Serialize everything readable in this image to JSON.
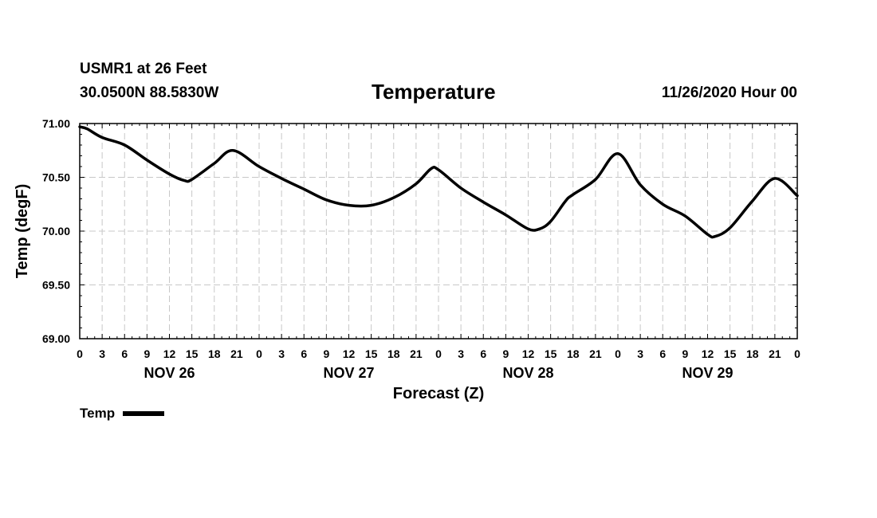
{
  "header": {
    "station": "USMR1 at 26 Feet",
    "coords": "30.0500N 88.5830W",
    "title": "Temperature",
    "datetime": "11/26/2020 Hour 00"
  },
  "legend": {
    "label": "Temp",
    "color": "#000000"
  },
  "chart_data": {
    "type": "line",
    "title": "Temperature",
    "xlabel": "Forecast (Z)",
    "ylabel": "Temp (degF)",
    "ylim": [
      69.0,
      71.0
    ],
    "yticks": [
      "69.00",
      "69.50",
      "70.00",
      "70.50",
      "71.00"
    ],
    "xlim": [
      0,
      96
    ],
    "xtick_labels": [
      "0",
      "3",
      "6",
      "9",
      "12",
      "15",
      "18",
      "21",
      "0",
      "3",
      "6",
      "9",
      "12",
      "15",
      "18",
      "21",
      "0",
      "3",
      "6",
      "9",
      "12",
      "15",
      "18",
      "21",
      "0",
      "3",
      "6",
      "9",
      "12",
      "15",
      "18",
      "21",
      "0"
    ],
    "day_labels": [
      {
        "label": "NOV 26",
        "hour": 12
      },
      {
        "label": "NOV 27",
        "hour": 36
      },
      {
        "label": "NOV 28",
        "hour": 60
      },
      {
        "label": "NOV 29",
        "hour": 84
      }
    ],
    "grid": true,
    "series": [
      {
        "name": "Temp",
        "x": [
          0,
          1,
          3,
          6,
          9,
          12,
          14,
          15,
          18,
          20.5,
          24,
          27,
          30,
          33,
          36,
          39,
          42,
          45,
          47,
          48,
          51,
          54,
          57,
          60,
          61.5,
          63,
          65,
          66,
          69,
          72,
          75,
          78,
          81,
          84,
          85,
          87,
          90,
          93,
          96
        ],
        "y": [
          70.97,
          70.95,
          70.87,
          70.8,
          70.66,
          70.53,
          70.47,
          70.48,
          70.63,
          70.75,
          70.6,
          70.49,
          70.39,
          70.29,
          70.24,
          70.24,
          70.31,
          70.44,
          70.58,
          70.57,
          70.4,
          70.27,
          70.15,
          70.02,
          70.02,
          70.09,
          70.28,
          70.34,
          70.48,
          70.72,
          70.43,
          70.25,
          70.14,
          69.97,
          69.95,
          70.03,
          70.28,
          70.49,
          70.33
        ]
      }
    ]
  }
}
